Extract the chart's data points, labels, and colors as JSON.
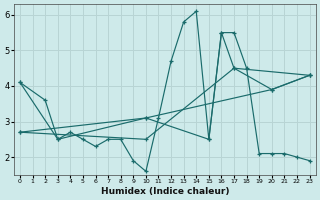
{
  "xlabel": "Humidex (Indice chaleur)",
  "background_color": "#ceeaea",
  "grid_color": "#b8d4d4",
  "line_color": "#1a6b6b",
  "series": [
    {
      "x": [
        0,
        2,
        3,
        4,
        5,
        6,
        7,
        8,
        9,
        10,
        11,
        12,
        13,
        14,
        15,
        16,
        17,
        18,
        19,
        20,
        21,
        22,
        23
      ],
      "y": [
        4.1,
        3.6,
        2.5,
        2.7,
        2.5,
        2.3,
        2.5,
        2.5,
        1.9,
        1.6,
        3.1,
        4.7,
        5.8,
        6.1,
        2.5,
        5.5,
        5.5,
        4.5,
        2.1,
        2.1,
        2.1,
        2.0,
        1.9
      ]
    },
    {
      "x": [
        0,
        3,
        10,
        15,
        16,
        17,
        20,
        23
      ],
      "y": [
        4.1,
        2.5,
        3.1,
        2.5,
        5.5,
        4.5,
        3.9,
        4.3
      ]
    },
    {
      "x": [
        0,
        10,
        17,
        23
      ],
      "y": [
        2.7,
        2.5,
        4.5,
        4.3
      ]
    },
    {
      "x": [
        0,
        10,
        20,
        23
      ],
      "y": [
        2.7,
        3.1,
        3.9,
        4.3
      ]
    }
  ],
  "xlim": [
    -0.5,
    23.5
  ],
  "ylim": [
    1.5,
    6.3
  ],
  "xticks": [
    0,
    1,
    2,
    3,
    4,
    5,
    6,
    7,
    8,
    9,
    10,
    11,
    12,
    13,
    14,
    15,
    16,
    17,
    18,
    19,
    20,
    21,
    22,
    23
  ],
  "yticks": [
    2,
    3,
    4,
    5,
    6
  ],
  "marker": "+"
}
